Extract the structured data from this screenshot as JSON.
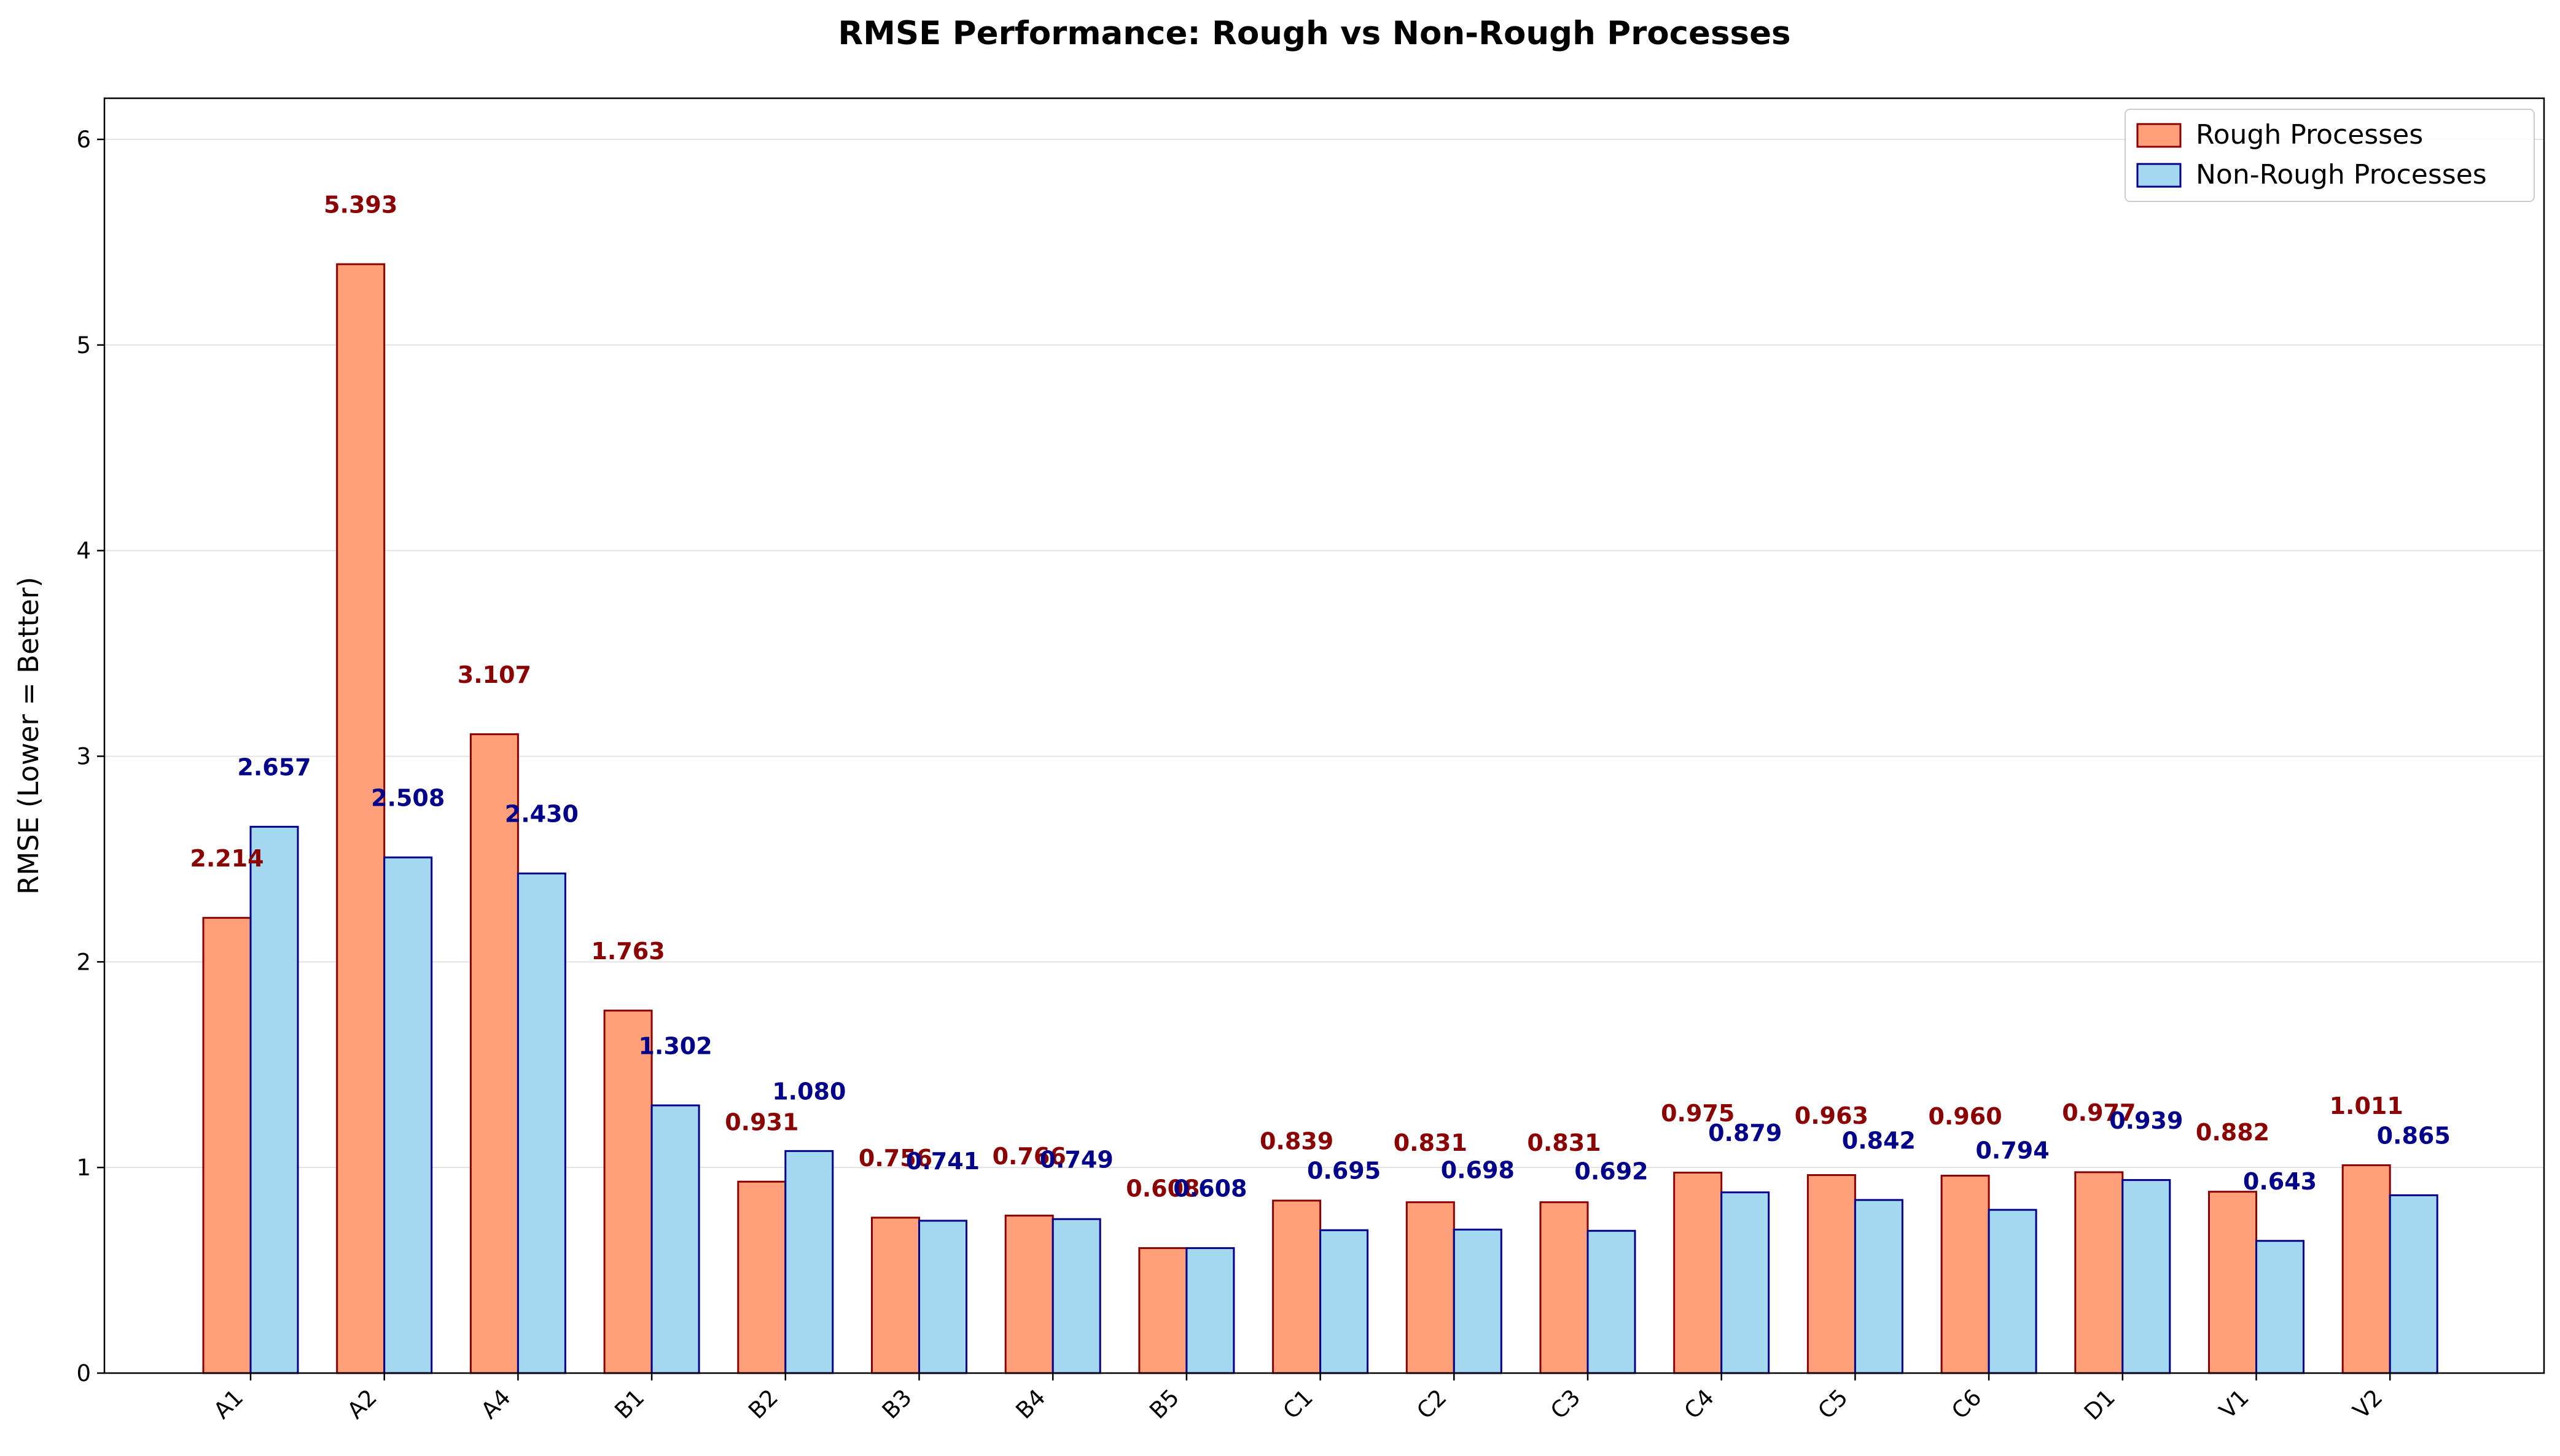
{
  "chart_data": {
    "type": "bar",
    "title": "RMSE Performance: Rough vs Non-Rough Processes",
    "xlabel": "",
    "ylabel": "RMSE (Lower = Better)",
    "ylim": [
      0,
      6.2
    ],
    "yticks": [
      0,
      1,
      2,
      3,
      4,
      5,
      6
    ],
    "grid": "horizontal",
    "legend_position": "top-right",
    "categories": [
      "A1",
      "A2",
      "A4",
      "B1",
      "B2",
      "B3",
      "B4",
      "B5",
      "C1",
      "C2",
      "C3",
      "C4",
      "C5",
      "C6",
      "D1",
      "V1",
      "V2"
    ],
    "series": [
      {
        "name": "Rough Processes",
        "fill": "#FFA07A",
        "edge": "#8B0000",
        "label_color": "#8B0000",
        "values": [
          2.214,
          5.393,
          3.107,
          1.763,
          0.931,
          0.756,
          0.766,
          0.608,
          0.839,
          0.831,
          0.831,
          0.975,
          0.963,
          0.96,
          0.977,
          0.882,
          1.011
        ],
        "labels": [
          "2.214",
          "5.393",
          "3.107",
          "1.763",
          "0.931",
          "0.756",
          "0.766",
          "0.608",
          "0.839",
          "0.831",
          "0.831",
          "0.975",
          "0.963",
          "0.960",
          "0.977",
          "0.882",
          "1.011"
        ]
      },
      {
        "name": "Non-Rough Processes",
        "fill": "#A3D8F0",
        "edge": "#00008B",
        "label_color": "#00008B",
        "values": [
          2.657,
          2.508,
          2.43,
          1.302,
          1.08,
          0.741,
          0.749,
          0.608,
          0.695,
          0.698,
          0.692,
          0.879,
          0.842,
          0.794,
          0.939,
          0.643,
          0.865
        ],
        "labels": [
          "2.657",
          "2.508",
          "2.430",
          "1.302",
          "1.080",
          "0.741",
          "0.749",
          "0.608",
          "0.695",
          "0.698",
          "0.692",
          "0.879",
          "0.842",
          "0.794",
          "0.939",
          "0.643",
          "0.865"
        ]
      }
    ]
  }
}
